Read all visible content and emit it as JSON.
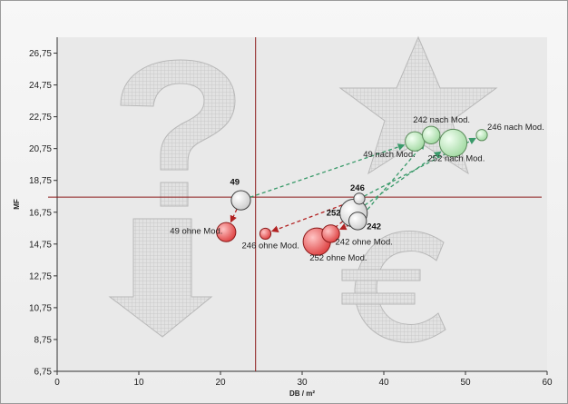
{
  "chart_data": {
    "type": "scatter",
    "xlabel": "DB / m²",
    "ylabel": "MF",
    "xlim": [
      0,
      60
    ],
    "ylim": [
      6.75,
      27.75
    ],
    "x_ticks": [
      "0",
      "10",
      "20",
      "30",
      "40",
      "50",
      "60"
    ],
    "y_ticks": [
      "6,75",
      "8,75",
      "10,75",
      "12,75",
      "14,75",
      "16,75",
      "18,75",
      "20,75",
      "22,75",
      "24,75",
      "26,75"
    ],
    "x_tick_values": [
      0,
      10,
      20,
      30,
      40,
      50,
      60
    ],
    "y_tick_values": [
      6.75,
      8.75,
      10.75,
      12.75,
      14.75,
      16.75,
      18.75,
      20.75,
      22.75,
      24.75,
      26.75
    ],
    "reference_lines": {
      "x": 24.3,
      "y": 17.7
    },
    "grid": false,
    "legend": "none",
    "series": [
      {
        "group": "base",
        "color": "#ffffff",
        "points": [
          {
            "label": "49",
            "x": 22.5,
            "y": 17.5,
            "size": 9
          },
          {
            "label": "246",
            "x": 37.0,
            "y": 17.6,
            "size": 4
          },
          {
            "label": "252",
            "x": 36.3,
            "y": 16.7,
            "size": 14
          },
          {
            "label": "242",
            "x": 36.8,
            "y": 16.2,
            "size": 8
          }
        ]
      },
      {
        "group": "ohne Mod.",
        "color": "#e86a6a",
        "points": [
          {
            "label": "49 ohne Mod.",
            "x": 20.7,
            "y": 15.5,
            "size": 9
          },
          {
            "label": "246 ohne Mod.",
            "x": 25.5,
            "y": 15.4,
            "size": 4
          },
          {
            "label": "252 ohne Mod.",
            "x": 31.8,
            "y": 14.9,
            "size": 14
          },
          {
            "label": "242 ohne Mod.",
            "x": 33.5,
            "y": 15.4,
            "size": 8
          }
        ]
      },
      {
        "group": "nach Mod.",
        "color": "#c8ecc8",
        "points": [
          {
            "label": "49 nach Mod.",
            "x": 43.8,
            "y": 21.2,
            "size": 9
          },
          {
            "label": "242 nach Mod.",
            "x": 45.8,
            "y": 21.6,
            "size": 8
          },
          {
            "label": "252 nach Mod.",
            "x": 48.5,
            "y": 21.1,
            "size": 14
          },
          {
            "label": "246 nach Mod.",
            "x": 52.0,
            "y": 21.6,
            "size": 4
          }
        ]
      }
    ],
    "arrows": [
      {
        "from": "49",
        "to": "49 ohne Mod.",
        "color": "#b22222"
      },
      {
        "from": "246",
        "to": "246 ohne Mod.",
        "color": "#b22222"
      },
      {
        "from": "252",
        "to": "252 ohne Mod.",
        "color": "#b22222"
      },
      {
        "from": "242",
        "to": "242 ohne Mod.",
        "color": "#b22222"
      },
      {
        "from": "49",
        "to": "49 nach Mod.",
        "color": "#3a9a6a"
      },
      {
        "from": "242",
        "to": "242 nach Mod.",
        "color": "#3a9a6a"
      },
      {
        "from": "252",
        "to": "252 nach Mod.",
        "color": "#3a9a6a"
      },
      {
        "from": "246",
        "to": "246 nach Mod.",
        "color": "#3a9a6a"
      }
    ],
    "decorations": [
      "question-mark",
      "star",
      "down-arrow",
      "euro-sign"
    ]
  }
}
